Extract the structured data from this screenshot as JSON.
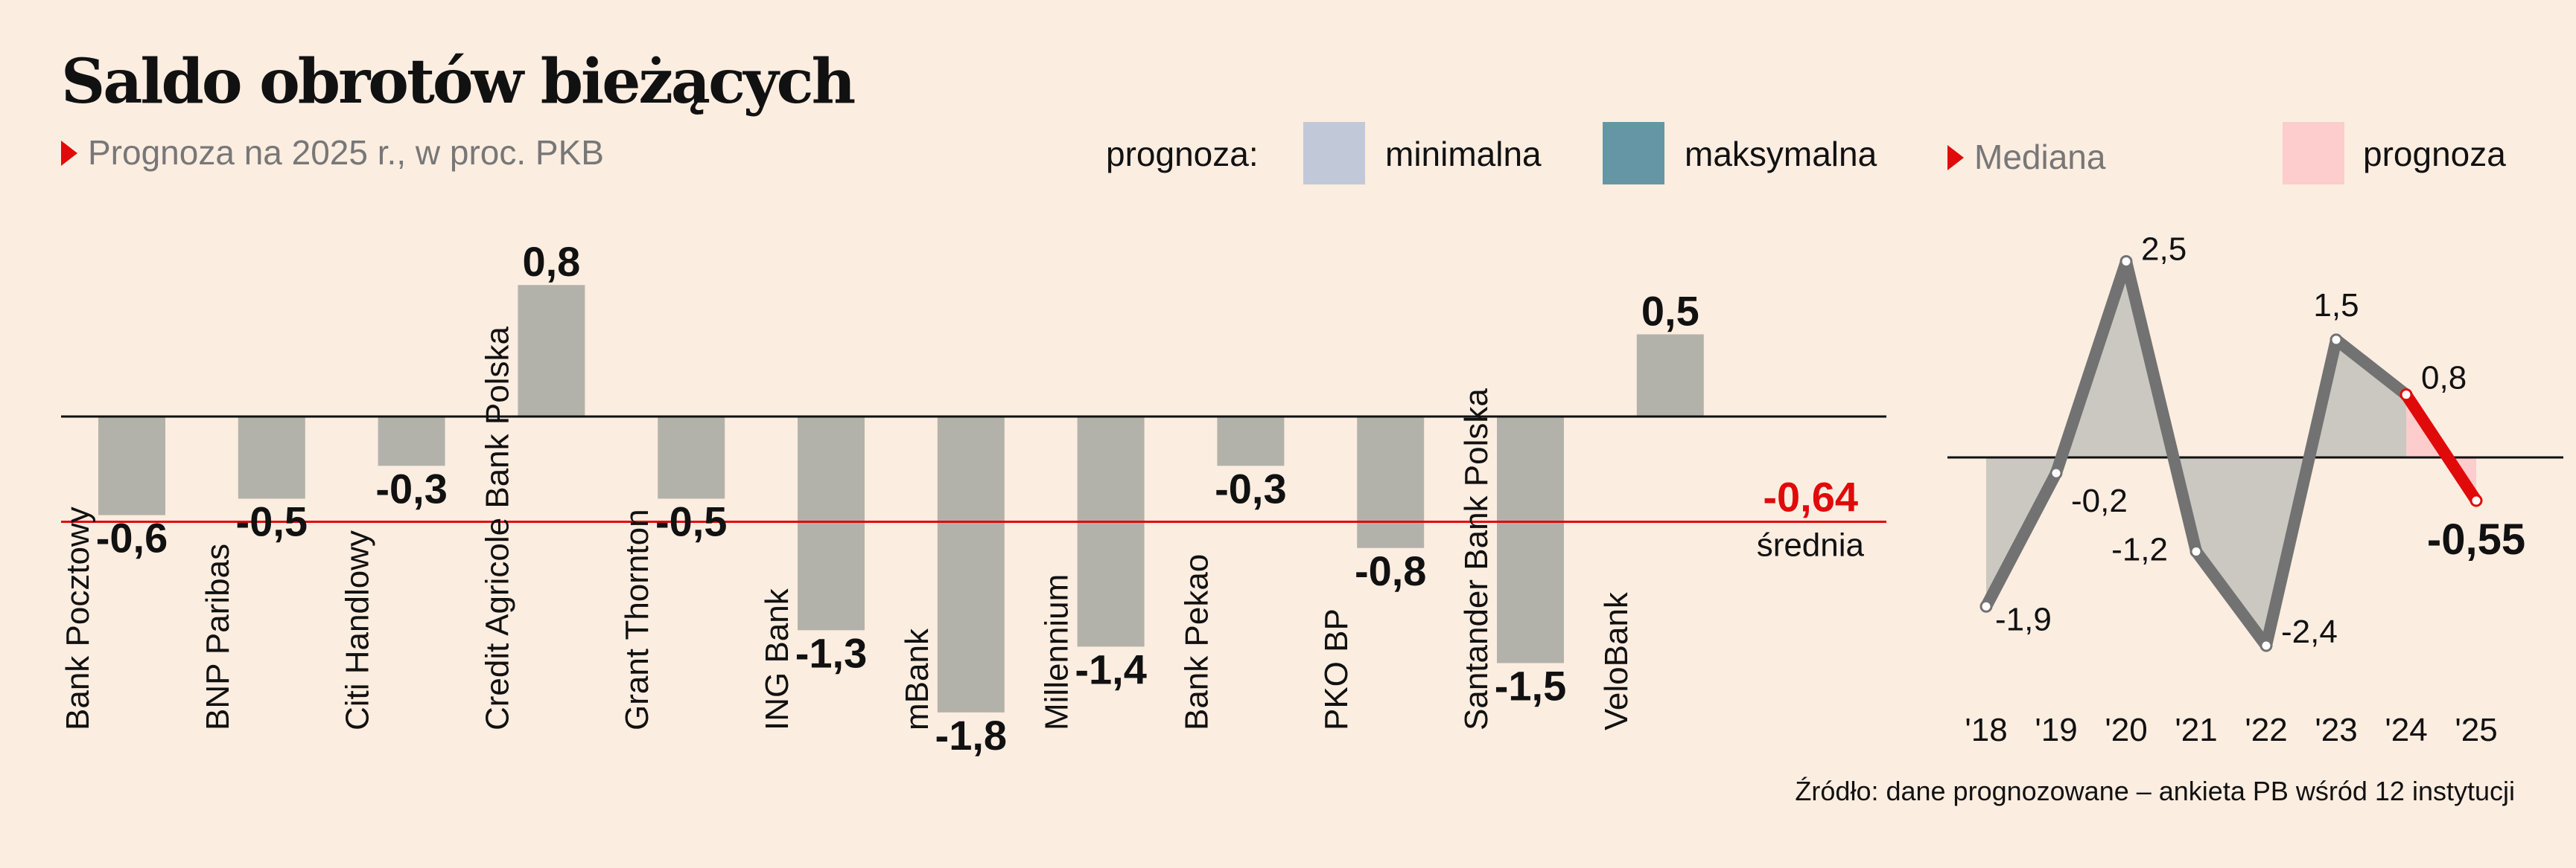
{
  "title": "Saldo obrotów bieżących",
  "subtitle": "Prognoza na 2025 r., w proc. PKB",
  "legend": {
    "label": "prognoza:",
    "min_label": "minimalna",
    "max_label": "maksymalna",
    "median_label": "Mediana",
    "forecast_label": "prognoza"
  },
  "colors": {
    "background": "#fcede1",
    "bar": "#b3b2aa",
    "min": "#c1c8d8",
    "max": "#6596a6",
    "accent": "#e10a0a",
    "forecast": "#fdcccc",
    "history_line": "#727272",
    "history_area": "#cbc8c1"
  },
  "source": "Źródło: dane prognozowane – ankieta PB wśród 12 instytucji",
  "chart_data": [
    {
      "type": "bar",
      "categories": [
        "Bank Pocztowy",
        "BNP Paribas",
        "Citi Handlowy",
        "Credit Agricole Bank Polska",
        "Grant Thornton",
        "ING Bank",
        "mBank",
        "Millennium",
        "Bank Pekao",
        "PKO BP",
        "Santander Bank Polska",
        "VeloBank"
      ],
      "values": [
        -0.6,
        -0.5,
        -0.3,
        0.8,
        -0.5,
        -1.3,
        -1.8,
        -1.4,
        -0.3,
        -0.8,
        -1.5,
        0.5
      ],
      "value_labels": [
        "-0,6",
        "-0,5",
        "-0,3",
        "0,8",
        "-0,5",
        "-1,3",
        "-1,8",
        "-1,4",
        "-0,3",
        "-0,8",
        "-1,5",
        "0,5"
      ],
      "average": {
        "value": -0.64,
        "label": "-0,64",
        "caption": "średnia"
      },
      "ylim": [
        -2.0,
        0.9
      ]
    },
    {
      "type": "line",
      "x": [
        "'18",
        "'19",
        "'20",
        "'21",
        "'22",
        "'23",
        "'24",
        "'25"
      ],
      "values": [
        -1.9,
        -0.2,
        2.5,
        -1.2,
        -2.4,
        1.5,
        0.8,
        -0.55
      ],
      "value_labels": [
        "-1,9",
        "-0,2",
        "2,5",
        "-1,2",
        "-2,4",
        "1,5",
        "0,8",
        "-0,55"
      ],
      "forecast_from": "'24",
      "ylim": [
        -2.6,
        2.7
      ]
    }
  ]
}
